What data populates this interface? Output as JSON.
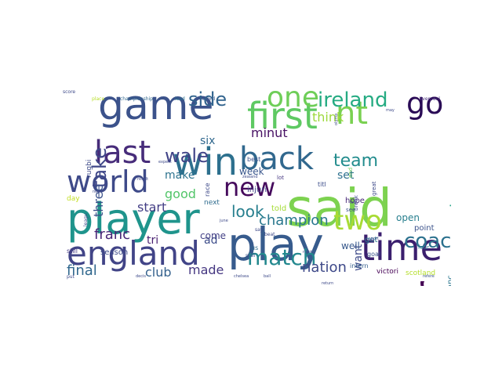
{
  "cloud": {
    "words": [
      {
        "text": "said",
        "color": "#7dd250",
        "size": 66,
        "rotate": 0
      },
      {
        "text": "play",
        "color": "#375b8d",
        "size": 58,
        "rotate": 0
      },
      {
        "text": "player",
        "color": "#1f948c",
        "size": 54,
        "rotate": 0
      },
      {
        "text": "game",
        "color": "#3b528b",
        "size": 52,
        "rotate": 0
      },
      {
        "text": "year",
        "color": "#440154",
        "size": 52,
        "rotate": -90
      },
      {
        "text": "win",
        "color": "#2d708e",
        "size": 48,
        "rotate": 0
      },
      {
        "text": "time",
        "color": "#3b1f6e",
        "size": 46,
        "rotate": 0
      },
      {
        "text": "first",
        "color": "#5ec962",
        "size": 46,
        "rotate": 0
      },
      {
        "text": "england",
        "color": "#414487",
        "size": 42,
        "rotate": 0
      },
      {
        "text": "back",
        "color": "#31688e",
        "size": 40,
        "rotate": 0
      },
      {
        "text": "nt",
        "color": "#7ad151",
        "size": 40,
        "rotate": 0
      },
      {
        "text": "last",
        "color": "#472c7a",
        "size": 40,
        "rotate": 0
      },
      {
        "text": "world",
        "color": "#3e4a89",
        "size": 38,
        "rotate": 0
      },
      {
        "text": "go",
        "color": "#2a0b56",
        "size": 38,
        "rotate": 0
      },
      {
        "text": "one",
        "color": "#6ece58",
        "size": 36,
        "rotate": 0
      },
      {
        "text": "two",
        "color": "#a8db34",
        "size": 34,
        "rotate": 0
      },
      {
        "text": "new",
        "color": "#450a5c",
        "size": 32,
        "rotate": 0
      },
      {
        "text": "match",
        "color": "#23888e",
        "size": 28,
        "rotate": 0
      },
      {
        "text": "ireland",
        "color": "#25ab82",
        "size": 26,
        "rotate": 0
      },
      {
        "text": "coach",
        "color": "#2c718e",
        "size": 26,
        "rotate": 0
      },
      {
        "text": "take",
        "color": "#3f4788",
        "size": 24,
        "rotate": -90
      },
      {
        "text": "side",
        "color": "#32648e",
        "size": 24,
        "rotate": 0
      },
      {
        "text": "wale",
        "color": "#404387",
        "size": 24,
        "rotate": 0
      },
      {
        "text": "team",
        "color": "#228c8d",
        "size": 22,
        "rotate": 0
      },
      {
        "text": "second",
        "color": "#20a386",
        "size": 20,
        "rotate": -90
      },
      {
        "text": "cup",
        "color": "#31b57b",
        "size": 20,
        "rotate": -90
      },
      {
        "text": "look",
        "color": "#277f8e",
        "size": 20,
        "rotate": 0
      },
      {
        "text": "franc",
        "color": "#482677",
        "size": 18,
        "rotate": 0
      },
      {
        "text": "final",
        "color": "#31688e",
        "size": 18,
        "rotate": 0
      },
      {
        "text": "nation",
        "color": "#3e4989",
        "size": 18,
        "rotate": 0
      },
      {
        "text": "champion",
        "color": "#2a788e",
        "size": 18,
        "rotate": 0
      },
      {
        "text": "start",
        "color": "#433e85",
        "size": 16,
        "rotate": 0
      },
      {
        "text": "club",
        "color": "#34618d",
        "size": 16,
        "rotate": 0
      },
      {
        "text": "made",
        "color": "#453781",
        "size": 16,
        "rotate": 0
      },
      {
        "text": "minut",
        "color": "#471063",
        "size": 16,
        "rotate": 0
      },
      {
        "text": "think",
        "color": "#9dd93b",
        "size": 16,
        "rotate": 0
      },
      {
        "text": "three",
        "color": "#3b528b",
        "size": 16,
        "rotate": -90
      },
      {
        "text": "good",
        "color": "#52c569",
        "size": 16,
        "rotate": 0
      },
      {
        "text": "make",
        "color": "#2c728e",
        "size": 14,
        "rotate": 0
      },
      {
        "text": "six",
        "color": "#31688e",
        "size": 14,
        "rotate": 0
      },
      {
        "text": "set",
        "color": "#2d708e",
        "size": 14,
        "rotate": 0
      },
      {
        "text": "want",
        "color": "#3e4a89",
        "size": 14,
        "rotate": -90
      },
      {
        "text": "tri",
        "color": "#481f70",
        "size": 14,
        "rotate": 0
      },
      {
        "text": "ad",
        "color": "#3d4d8a",
        "size": 14,
        "rotate": 0
      },
      {
        "text": "week",
        "color": "#39568c",
        "size": 12,
        "rotate": 0
      },
      {
        "text": "come",
        "color": "#423f85",
        "size": 12,
        "rotate": 0
      },
      {
        "text": "well",
        "color": "#38598c",
        "size": 12,
        "rotate": 0
      },
      {
        "text": "open",
        "color": "#277f8e",
        "size": 12,
        "rotate": 0
      },
      {
        "text": "point",
        "color": "#3b528b",
        "size": 10,
        "rotate": 0
      },
      {
        "text": "season",
        "color": "#3e4c8a",
        "size": 10,
        "rotate": 0
      },
      {
        "text": "chanc",
        "color": "#2a768e",
        "size": 10,
        "rotate": -90
      },
      {
        "text": "hope",
        "color": "#482878",
        "size": 10,
        "rotate": 0
      },
      {
        "text": "told",
        "color": "#a5db36",
        "size": 10,
        "rotate": 0
      },
      {
        "text": "injuri",
        "color": "#414487",
        "size": 10,
        "rotate": 0
      },
      {
        "text": "got",
        "color": "#2a788e",
        "size": 10,
        "rotate": 0
      },
      {
        "text": "victori",
        "color": "#440154",
        "size": 9,
        "rotate": 0
      },
      {
        "text": "scotland",
        "color": "#b5de2b",
        "size": 9,
        "rotate": 0
      },
      {
        "text": "rugbi",
        "color": "#3e4a89",
        "size": 9,
        "rotate": -90
      },
      {
        "text": "day",
        "color": "#c2df23",
        "size": 9,
        "rotate": 0
      },
      {
        "text": "next",
        "color": "#2f6c8e",
        "size": 9,
        "rotate": 0
      },
      {
        "text": "still",
        "color": "#453882",
        "size": 8,
        "rotate": 0
      },
      {
        "text": "best",
        "color": "#3b528b",
        "size": 8,
        "rotate": 0
      },
      {
        "text": "goal",
        "color": "#3b528b",
        "size": 8,
        "rotate": 0
      },
      {
        "text": "intern",
        "color": "#355f8d",
        "size": 8,
        "rotate": 0
      },
      {
        "text": "us",
        "color": "#2e6e8e",
        "size": 8,
        "rotate": 0
      },
      {
        "text": "titl",
        "color": "#3d4e8a",
        "size": 8,
        "rotate": 0
      },
      {
        "text": "lot",
        "color": "#453781",
        "size": 7,
        "rotate": 0
      },
      {
        "text": "see",
        "color": "#3b528b",
        "size": 7,
        "rotate": 0
      },
      {
        "text": "break",
        "color": "#3e4989",
        "size": 7,
        "rotate": -90
      },
      {
        "text": "four",
        "color": "#2a788e",
        "size": 7,
        "rotate": 0
      },
      {
        "text": "liverpool",
        "color": "#472f7d",
        "size": 6,
        "rotate": 0
      },
      {
        "text": "championship",
        "color": "#31688e",
        "size": 6,
        "rotate": 0
      },
      {
        "text": "lead",
        "color": "#2c728e",
        "size": 6,
        "rotate": 0
      },
      {
        "text": "record",
        "color": "#38598c",
        "size": 6,
        "rotate": 0
      },
      {
        "text": "place",
        "color": "#b8de29",
        "size": 6,
        "rotate": 0
      },
      {
        "text": "stali",
        "color": "#3b528b",
        "size": 6,
        "rotate": 0
      },
      {
        "text": "chelsea",
        "color": "#3e4a89",
        "size": 5,
        "rotate": 0
      },
      {
        "text": "ball",
        "color": "#3e4a89",
        "size": 5,
        "rotate": 0
      },
      {
        "text": "refere",
        "color": "#3b528b",
        "size": 5,
        "rotate": 0
      },
      {
        "text": "return",
        "color": "#3e4a89",
        "size": 5,
        "rotate": 0
      },
      {
        "text": "sport",
        "color": "#3e4a89",
        "size": 5,
        "rotate": 0
      },
      {
        "text": "great",
        "color": "#3e4a89",
        "size": 7,
        "rotate": -90
      },
      {
        "text": "end",
        "color": "#6ece58",
        "size": 7,
        "rotate": -90
      },
      {
        "text": "race",
        "color": "#3e4a89",
        "size": 8,
        "rotate": -90
      },
      {
        "text": "say",
        "color": "#3e4a89",
        "size": 6,
        "rotate": 0
      },
      {
        "text": "beat",
        "color": "#3e4a89",
        "size": 6,
        "rotate": 0
      },
      {
        "text": "leagu",
        "color": "#3e4a89",
        "size": 6,
        "rotate": -90
      },
      {
        "text": "zealand",
        "color": "#3e4a89",
        "size": 5,
        "rotate": 0
      },
      {
        "text": "need",
        "color": "#3e4a89",
        "size": 5,
        "rotate": 0
      },
      {
        "text": "left",
        "color": "#3e4a89",
        "size": 5,
        "rotate": 0
      },
      {
        "text": "may",
        "color": "#3e4a89",
        "size": 5,
        "rotate": 0
      },
      {
        "text": "put",
        "color": "#3e4a89",
        "size": 6,
        "rotate": 0
      },
      {
        "text": "decis",
        "color": "#3e4a89",
        "size": 5,
        "rotate": 0
      },
      {
        "text": "june",
        "color": "#3e4a89",
        "size": 5,
        "rotate": 0
      },
      {
        "text": "result",
        "color": "#3e4a89",
        "size": 5,
        "rotate": 0
      },
      {
        "text": "olymp",
        "color": "#3e4a89",
        "size": 5,
        "rotate": -90
      },
      {
        "text": "expect",
        "color": "#3e4a89",
        "size": 5,
        "rotate": 0
      },
      {
        "text": "right",
        "color": "#3e4a89",
        "size": 5,
        "rotate": 0
      },
      {
        "text": "score",
        "color": "#3e4a89",
        "size": 6,
        "rotate": 0
      }
    ]
  }
}
